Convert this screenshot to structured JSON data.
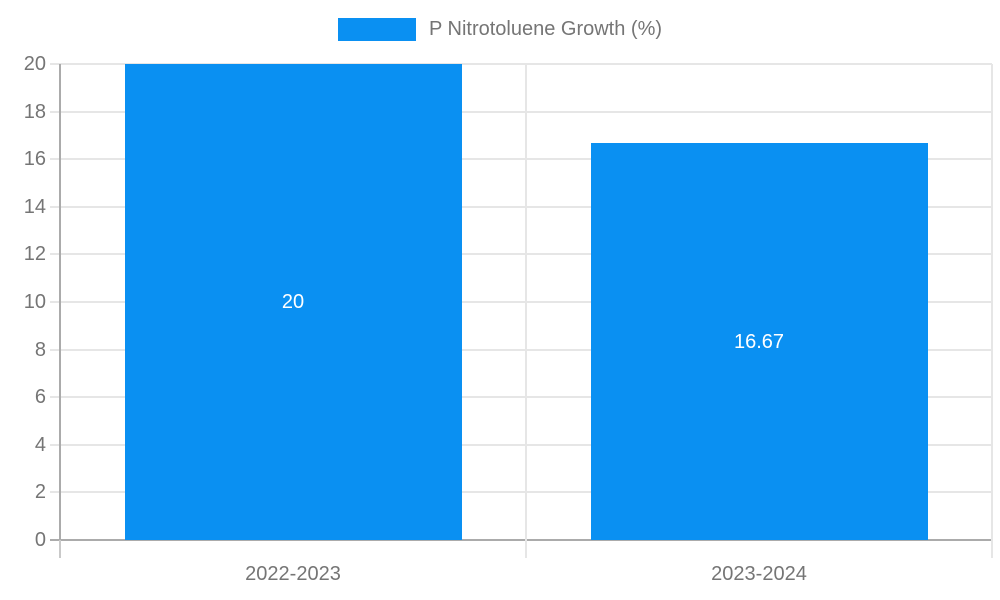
{
  "chart_data": {
    "type": "bar",
    "series_name": "P Nitrotoluene Growth (%)",
    "categories": [
      "2022-2023",
      "2023-2024"
    ],
    "values": [
      20,
      16.67
    ],
    "bar_labels": [
      "20",
      "16.67"
    ],
    "ylim": [
      0,
      20
    ],
    "ytick_step": 2,
    "ytick_labels": [
      "0",
      "2",
      "4",
      "6",
      "8",
      "10",
      "12",
      "14",
      "16",
      "18",
      "20"
    ],
    "grid": true,
    "legend_position": "top",
    "colors": {
      "bar": "#0a90f2",
      "grid": "#e6e6e6",
      "axis": "#ababab",
      "axis_tick": "#c9c9c9",
      "tick_text": "#757575",
      "bar_label_text": "#ffffff",
      "legend_text": "#757575",
      "background": "#ffffff"
    }
  }
}
